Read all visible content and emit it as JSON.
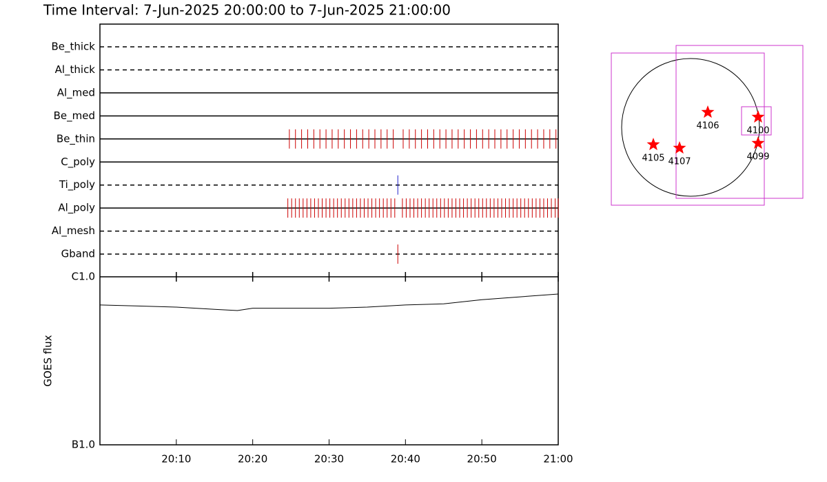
{
  "chart_data": {
    "type": "timeline",
    "title": "Time Interval:  7-Jun-2025 20:00:00 to  7-Jun-2025 21:00:00",
    "xlim": [
      0,
      60
    ],
    "xticks": [
      {
        "value": 10,
        "label": "20:10"
      },
      {
        "value": 20,
        "label": "20:20"
      },
      {
        "value": 30,
        "label": "20:30"
      },
      {
        "value": 40,
        "label": "20:40"
      },
      {
        "value": 50,
        "label": "20:50"
      },
      {
        "value": 60,
        "label": "21:00"
      }
    ],
    "filters": [
      {
        "name": "Be_thick",
        "style": "dashed"
      },
      {
        "name": "Al_thick",
        "style": "dashed"
      },
      {
        "name": "Al_med",
        "style": "solid"
      },
      {
        "name": "Be_med",
        "style": "solid"
      },
      {
        "name": "Be_thin",
        "style": "solid",
        "color": "#cc0000",
        "times": [
          24.8,
          25.6,
          26.4,
          27.2,
          28.0,
          28.8,
          29.6,
          30.4,
          31.2,
          32.0,
          32.8,
          33.6,
          34.4,
          35.2,
          36.0,
          36.8,
          37.6,
          38.4,
          39.7,
          40.5,
          41.3,
          42.1,
          42.9,
          43.7,
          44.5,
          45.3,
          46.1,
          46.9,
          47.7,
          48.5,
          49.3,
          50.1,
          50.9,
          51.7,
          52.5,
          53.3,
          54.1,
          54.9,
          55.7,
          56.5,
          57.3,
          58.1,
          58.9,
          59.7
        ]
      },
      {
        "name": "C_poly",
        "style": "solid"
      },
      {
        "name": "Ti_poly",
        "style": "dashed",
        "color": "#2020cc",
        "times": [
          39.0
        ]
      },
      {
        "name": "Al_poly",
        "style": "solid",
        "color": "#cc0000",
        "times": [
          24.6,
          25.1,
          25.6,
          26.1,
          26.6,
          27.1,
          27.6,
          28.1,
          28.6,
          29.1,
          29.6,
          30.1,
          30.6,
          31.1,
          31.6,
          32.1,
          32.6,
          33.1,
          33.6,
          34.1,
          34.6,
          35.1,
          35.6,
          36.1,
          36.6,
          37.1,
          37.6,
          38.1,
          38.6,
          39.6,
          40.1,
          40.6,
          41.1,
          41.6,
          42.1,
          42.6,
          43.1,
          43.6,
          44.1,
          44.6,
          45.1,
          45.6,
          46.1,
          46.6,
          47.1,
          47.6,
          48.1,
          48.6,
          49.1,
          49.6,
          50.1,
          50.6,
          51.1,
          51.6,
          52.1,
          52.6,
          53.1,
          53.6,
          54.1,
          54.6,
          55.1,
          55.6,
          56.1,
          56.6,
          57.1,
          57.6,
          58.1,
          58.6,
          59.1,
          59.6,
          60.0
        ]
      },
      {
        "name": "Al_mesh",
        "style": "dashed"
      },
      {
        "name": "Gband",
        "style": "dashed",
        "color": "#cc0000",
        "times": [
          39.0
        ]
      }
    ],
    "goes": {
      "ylabel": "GOES flux",
      "log": true,
      "ylim": [
        1e-07,
        1e-06
      ],
      "yticks": [
        {
          "value": 1e-07,
          "label": "B1.0"
        },
        {
          "value": 1e-06,
          "label": "C1.0"
        }
      ],
      "x": [
        0,
        5,
        10,
        15,
        18,
        20,
        25,
        30,
        35,
        40,
        45,
        50,
        55,
        60
      ],
      "values": [
        6.8e-07,
        6.7e-07,
        6.6e-07,
        6.4e-07,
        6.3e-07,
        6.5e-07,
        6.5e-07,
        6.5e-07,
        6.6e-07,
        6.8e-07,
        6.9e-07,
        7.3e-07,
        7.6e-07,
        7.9e-07
      ]
    }
  },
  "map": {
    "labels": [
      "4106",
      "4100",
      "4105",
      "4107",
      "4099"
    ]
  }
}
